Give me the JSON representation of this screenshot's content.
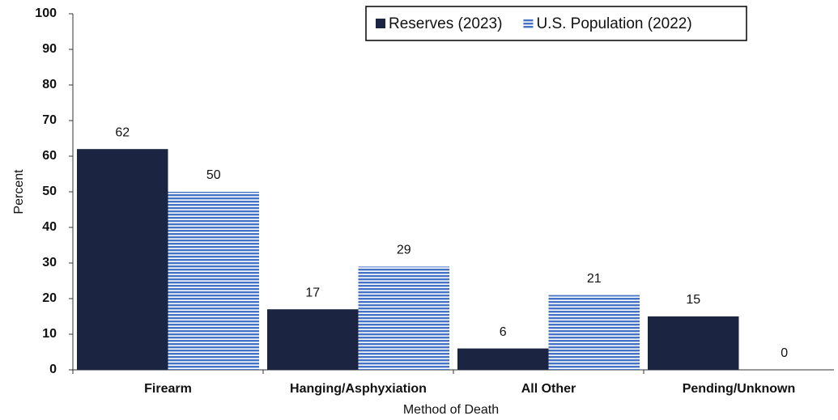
{
  "chart_data": {
    "type": "bar",
    "x_label": "Method of Death",
    "y_label": "Percent",
    "categories": [
      "Firearm",
      "Hanging/Asphyxiation",
      "All Other",
      "Pending/Unknown"
    ],
    "series": [
      {
        "name": "Reserves (2023)",
        "color": "#1b2541",
        "values": [
          62,
          17,
          6,
          15
        ]
      },
      {
        "name": "U.S. Population (2022)",
        "color": "#4472c4",
        "pattern": "horizontal-stripes",
        "values": [
          50,
          29,
          21,
          0
        ]
      }
    ],
    "ylim": [
      0,
      100
    ],
    "yticks": [
      0,
      10,
      20,
      30,
      40,
      50,
      60,
      70,
      80,
      90,
      100
    ],
    "grid": false,
    "legend": "upper right"
  }
}
